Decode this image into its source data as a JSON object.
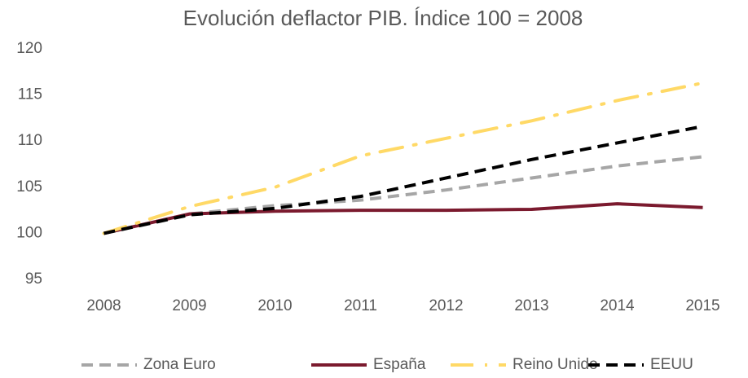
{
  "chart_data": {
    "type": "line",
    "title": "Evolución deflactor PIB. Índice 100 = 2008",
    "categories": [
      "2008",
      "2009",
      "2010",
      "2011",
      "2012",
      "2013",
      "2014",
      "2015"
    ],
    "series": [
      {
        "name": "Zona Euro",
        "color": "#a6a6a6",
        "dash": "dash",
        "values": [
          100,
          102.1,
          103.0,
          103.6,
          104.7,
          106.0,
          107.3,
          108.3
        ]
      },
      {
        "name": "España",
        "color": "#7b1a2e",
        "dash": "solid",
        "values": [
          100,
          102.1,
          102.4,
          102.5,
          102.5,
          102.6,
          103.2,
          102.8
        ]
      },
      {
        "name": "Reino Unido",
        "color": "#ffd966",
        "dash": "dashdot",
        "values": [
          100,
          102.9,
          105.0,
          108.4,
          110.3,
          112.2,
          114.4,
          116.3
        ]
      },
      {
        "name": "EEUU",
        "color": "#000000",
        "dash": "dash",
        "values": [
          100,
          102.0,
          102.7,
          104.0,
          106.0,
          108.0,
          109.8,
          111.6
        ]
      }
    ],
    "ylim": [
      95,
      120
    ],
    "yticks": [
      95,
      100,
      105,
      110,
      115,
      120
    ],
    "grid": false,
    "legend": "bottom"
  }
}
